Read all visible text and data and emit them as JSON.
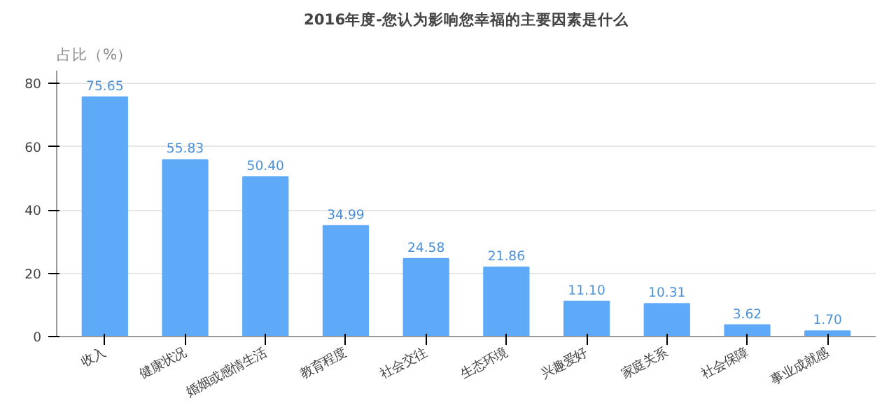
{
  "chart_data": {
    "type": "bar",
    "title": "2016年度-您认为影响您幸福的主要因素是什么",
    "ylabel": "占比（%）",
    "categories": [
      "收入",
      "健康状况",
      "婚姻或感情生活",
      "教育程度",
      "社会交往",
      "生态环境",
      "兴趣爱好",
      "家庭关系",
      "社会保障",
      "事业成就感"
    ],
    "values": [
      75.65,
      55.83,
      50.4,
      34.99,
      24.58,
      21.86,
      11.1,
      10.31,
      3.62,
      1.7
    ],
    "color": "#5ea9f8",
    "ylim": [
      0,
      84
    ],
    "yticks": [
      0,
      20,
      40,
      60,
      80
    ],
    "grid": "y",
    "value_labels": [
      "75.65",
      "55.83",
      "50.40",
      "34.99",
      "24.58",
      "21.86",
      "11.10",
      "10.31",
      "3.62",
      "1.70"
    ]
  }
}
